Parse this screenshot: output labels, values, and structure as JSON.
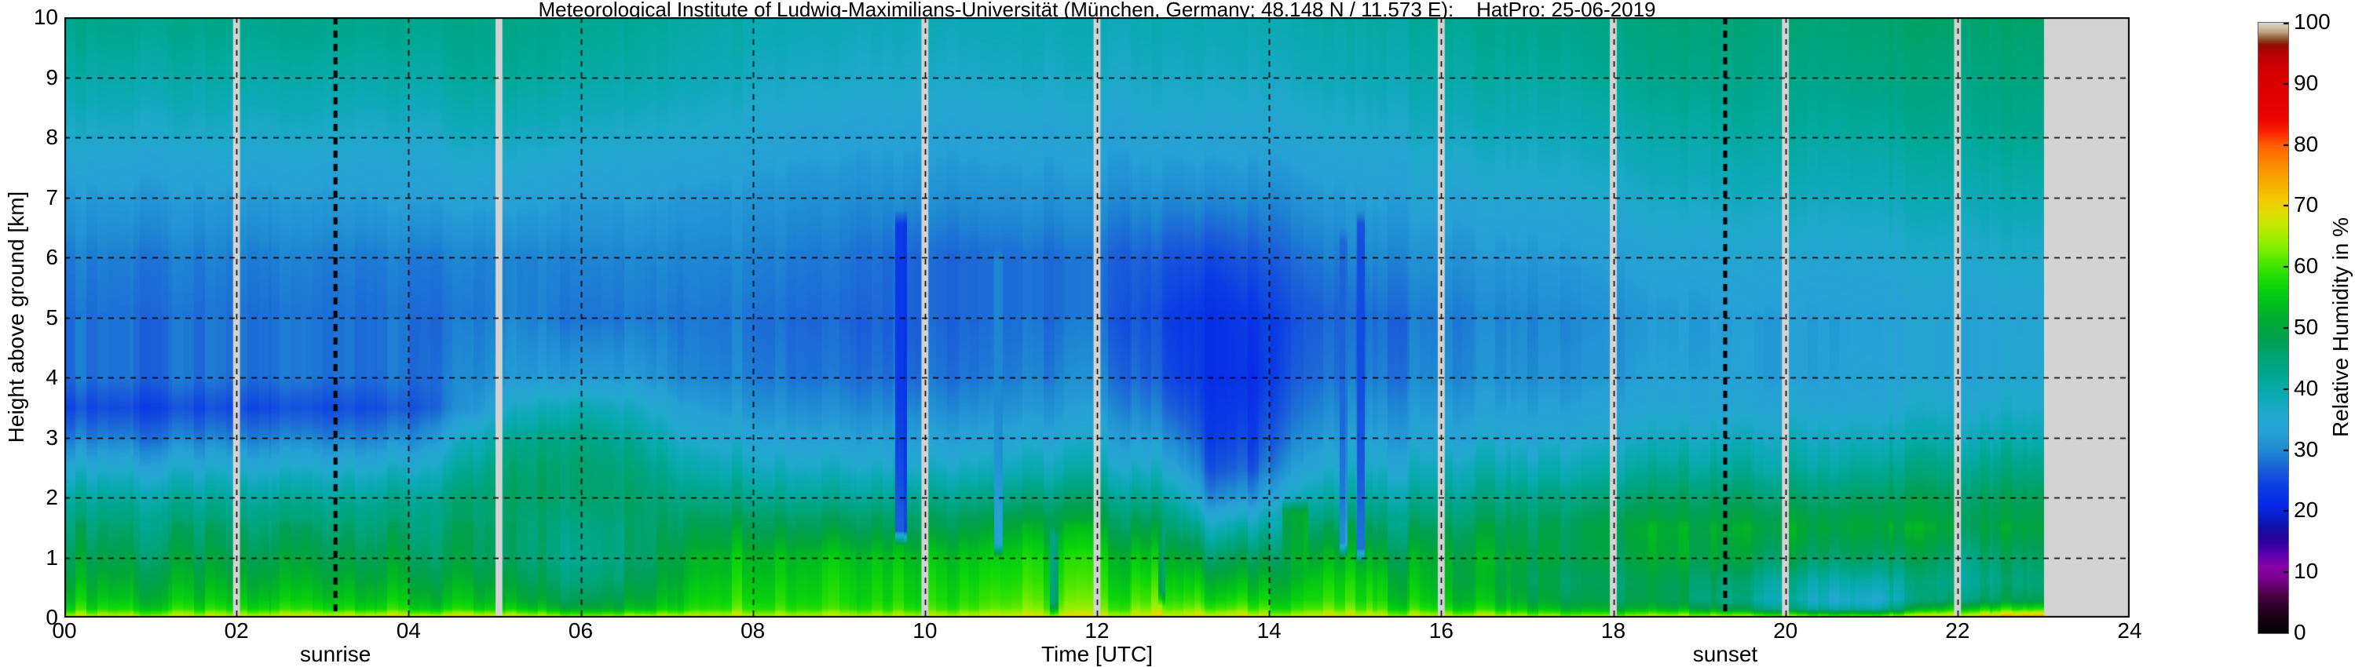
{
  "chart_data": {
    "type": "heatmap",
    "title": "Meteorological Institute of Ludwig-Maximilians-Universität (München, Germany; 48.148 N / 11.573 E):    HatPro: 25-06-2019",
    "xlabel": "Time [UTC]",
    "ylabel": "Height above ground [km]",
    "colorbar_label": "Relative Humidity in %",
    "xlim": [
      0,
      24
    ],
    "ylim": [
      0,
      10
    ],
    "clim": [
      0,
      100
    ],
    "grid": {
      "x_step_hours": 2,
      "y_step_km": 1,
      "style": "dashed",
      "color": "#000000"
    },
    "x_tick_values": [
      0,
      2,
      4,
      6,
      8,
      10,
      12,
      14,
      16,
      18,
      20,
      22,
      24
    ],
    "x_tick_labels": [
      "00",
      "02",
      "04",
      "06",
      "08",
      "10",
      "12",
      "14",
      "16",
      "18",
      "20",
      "22",
      "24"
    ],
    "y_tick_values": [
      0,
      1,
      2,
      3,
      4,
      5,
      6,
      7,
      8,
      9,
      10
    ],
    "y_tick_labels": [
      "0",
      "1",
      "2",
      "3",
      "4",
      "5",
      "6",
      "7",
      "8",
      "9",
      "10"
    ],
    "cbar_tick_values": [
      0,
      10,
      20,
      30,
      40,
      50,
      60,
      70,
      80,
      90,
      100
    ],
    "cbar_tick_labels": [
      "0",
      "10",
      "20",
      "30",
      "40",
      "50",
      "60",
      "70",
      "80",
      "90",
      "100"
    ],
    "annotations": [
      {
        "text": "sunrise",
        "t": 3.15
      },
      {
        "text": "sunset",
        "t": 19.3
      }
    ],
    "sun_lines_utc": [
      3.15,
      19.3
    ],
    "data_gap_times_utc": [
      2.0,
      5.05,
      10.0,
      12.0,
      16.0,
      18.0,
      20.0,
      22.0
    ],
    "gap_width_hours": 0.08,
    "no_data_from_utc": 23.0,
    "no_data_to_utc": 24.0,
    "no_data_color": "#d3d3d3",
    "heights_km": [
      0,
      0.06,
      0.15,
      0.3,
      0.6,
      1,
      1.5,
      2,
      2.5,
      3,
      3.5,
      4,
      5,
      6,
      7,
      8,
      9,
      10
    ],
    "times_utc": [
      0,
      1,
      2,
      3,
      4,
      4.7,
      5.2,
      6,
      6.7,
      7.3,
      8,
      9,
      10,
      11,
      12,
      12.9,
      13.3,
      13.8,
      14.2,
      14.9,
      15.3,
      16,
      17,
      18,
      19,
      20,
      21,
      22,
      23
    ],
    "rh_percent": [
      [
        70,
        63,
        57,
        54,
        51,
        48,
        45,
        41,
        35,
        29,
        25,
        28,
        28,
        29,
        32,
        36,
        40,
        43
      ],
      [
        70,
        63,
        57,
        54,
        51,
        48,
        45,
        41,
        35,
        29,
        25,
        28,
        28,
        29,
        32,
        36,
        40,
        43
      ],
      [
        70,
        63,
        57,
        54,
        51,
        48,
        45,
        41,
        35,
        29,
        25,
        28,
        28,
        29,
        32,
        36,
        40,
        43
      ],
      [
        71,
        64,
        57,
        54,
        51,
        48,
        45,
        41,
        35,
        29,
        25,
        28,
        28,
        29,
        32,
        36,
        40,
        43
      ],
      [
        74,
        64,
        57,
        54,
        51,
        48,
        45,
        42,
        36,
        30,
        26,
        28,
        28,
        29,
        33,
        36,
        40,
        43
      ],
      [
        74,
        63,
        55,
        52,
        49,
        46,
        45,
        44,
        40,
        36,
        30,
        29,
        28,
        29,
        33,
        37,
        41,
        43
      ],
      [
        71,
        62,
        54,
        50,
        47,
        44,
        44,
        45,
        44,
        41,
        36,
        31,
        29,
        29,
        33,
        37,
        41,
        43
      ],
      [
        70,
        61,
        53,
        49,
        46,
        44,
        45,
        47,
        47,
        45,
        40,
        33,
        29,
        30,
        33,
        37,
        41,
        43
      ],
      [
        70,
        62,
        54,
        51,
        48,
        46,
        46,
        46,
        44,
        41,
        37,
        32,
        29,
        30,
        33,
        36,
        40,
        42
      ],
      [
        70,
        65,
        59,
        57,
        55,
        53,
        49,
        44,
        40,
        36,
        33,
        30,
        29,
        30,
        32,
        36,
        39,
        41
      ],
      [
        70,
        66,
        61,
        59,
        57,
        55,
        50,
        44,
        39,
        35,
        32,
        30,
        29,
        30,
        32,
        35,
        38,
        40
      ],
      [
        70,
        66,
        61,
        59,
        58,
        56,
        50,
        43,
        38,
        34,
        31,
        29,
        28,
        29,
        31,
        34,
        37,
        39
      ],
      [
        70,
        66,
        61,
        59,
        58,
        56,
        50,
        44,
        38,
        34,
        31,
        29,
        28,
        28,
        31,
        34,
        37,
        39
      ],
      [
        70,
        66,
        62,
        60,
        58,
        56,
        51,
        44,
        38,
        34,
        31,
        29,
        28,
        28,
        31,
        34,
        37,
        39
      ],
      [
        70,
        66,
        62,
        60,
        58,
        56,
        51,
        45,
        39,
        35,
        32,
        30,
        28,
        28,
        31,
        34,
        37,
        39
      ],
      [
        71,
        66,
        62,
        59,
        56,
        52,
        46,
        40,
        34,
        30,
        27,
        25,
        24,
        26,
        30,
        34,
        37,
        39
      ],
      [
        72,
        65,
        60,
        56,
        52,
        46,
        38,
        30,
        26,
        24,
        23,
        22,
        22,
        25,
        30,
        34,
        37,
        39
      ],
      [
        72,
        65,
        60,
        56,
        52,
        47,
        39,
        31,
        26,
        24,
        23,
        22,
        23,
        26,
        30,
        34,
        37,
        39
      ],
      [
        71,
        65,
        60,
        57,
        54,
        50,
        44,
        38,
        33,
        30,
        28,
        27,
        26,
        28,
        31,
        35,
        38,
        40
      ],
      [
        70,
        65,
        60,
        57,
        55,
        51,
        46,
        40,
        35,
        32,
        30,
        28,
        27,
        29,
        32,
        35,
        38,
        40
      ],
      [
        70,
        65,
        60,
        57,
        55,
        51,
        46,
        41,
        36,
        33,
        31,
        29,
        28,
        30,
        33,
        36,
        39,
        41
      ],
      [
        70,
        63,
        57,
        54,
        52,
        51,
        47,
        42,
        38,
        34,
        32,
        30,
        29,
        31,
        34,
        37,
        40,
        42
      ],
      [
        70,
        62,
        55,
        51,
        49,
        50,
        48,
        44,
        39,
        35,
        33,
        31,
        30,
        32,
        35,
        38,
        41,
        43
      ],
      [
        70,
        60,
        52,
        48,
        47,
        49,
        50,
        45,
        40,
        36,
        34,
        32,
        31,
        33,
        36,
        39,
        42,
        44
      ],
      [
        70,
        60,
        50,
        45,
        46,
        49,
        50,
        46,
        41,
        37,
        34,
        33,
        32,
        34,
        37,
        40,
        43,
        45
      ],
      [
        70,
        58,
        44,
        40,
        42,
        48,
        51,
        46,
        41,
        38,
        35,
        33,
        33,
        35,
        38,
        41,
        43,
        45
      ],
      [
        70,
        56,
        40,
        36,
        40,
        47,
        51,
        47,
        42,
        38,
        35,
        34,
        33,
        35,
        38,
        41,
        44,
        46
      ],
      [
        75,
        66,
        56,
        46,
        43,
        45,
        49,
        47,
        43,
        39,
        36,
        34,
        34,
        36,
        39,
        42,
        44,
        46
      ],
      [
        78,
        70,
        58,
        47,
        44,
        46,
        49,
        47,
        43,
        39,
        36,
        35,
        34,
        36,
        39,
        42,
        44,
        46
      ]
    ],
    "dry_moist_streaks": [
      {
        "t": 9.72,
        "w": 0.14,
        "h0": 1.2,
        "h1": 6.8,
        "rh": 23
      },
      {
        "t": 10.85,
        "w": 0.1,
        "h0": 1.0,
        "h1": 6.2,
        "rh": 30
      },
      {
        "t": 11.5,
        "w": 0.1,
        "h0": 0.0,
        "h1": 1.6,
        "rh": 44
      },
      {
        "t": 12.75,
        "w": 0.08,
        "h0": 0.2,
        "h1": 1.8,
        "rh": 44
      },
      {
        "t": 14.3,
        "w": 0.3,
        "h0": 0.6,
        "h1": 2.0,
        "rh": 53
      },
      {
        "t": 14.86,
        "w": 0.09,
        "h0": 1.0,
        "h1": 6.5,
        "rh": 27
      },
      {
        "t": 15.06,
        "w": 0.09,
        "h0": 0.9,
        "h1": 6.8,
        "rh": 25
      }
    ],
    "colormap_stops": [
      [
        0,
        "#000000"
      ],
      [
        3,
        "#1c0018"
      ],
      [
        6,
        "#47003f"
      ],
      [
        9,
        "#7a0090"
      ],
      [
        11,
        "#8800a8"
      ],
      [
        13,
        "#5c00b0"
      ],
      [
        15,
        "#2f009c"
      ],
      [
        17,
        "#150e9c"
      ],
      [
        19,
        "#0a1cc4"
      ],
      [
        21,
        "#0628e6"
      ],
      [
        24,
        "#0a3ce4"
      ],
      [
        27,
        "#1b5fd8"
      ],
      [
        30,
        "#1e8ad2"
      ],
      [
        33,
        "#27a0d6"
      ],
      [
        36,
        "#20a8cc"
      ],
      [
        39,
        "#0baab4"
      ],
      [
        42,
        "#00a894"
      ],
      [
        45,
        "#00a476"
      ],
      [
        48,
        "#009f52"
      ],
      [
        51,
        "#00a834"
      ],
      [
        54,
        "#00bf1c"
      ],
      [
        57,
        "#0cd60a"
      ],
      [
        60,
        "#3ce400"
      ],
      [
        63,
        "#7fee00"
      ],
      [
        66,
        "#b5ec00"
      ],
      [
        69,
        "#e0dc00"
      ],
      [
        71,
        "#f2cb00"
      ],
      [
        74,
        "#f8ab00"
      ],
      [
        77,
        "#fb8800"
      ],
      [
        80,
        "#ff5f00"
      ],
      [
        82,
        "#fa2600"
      ],
      [
        84,
        "#ee0500"
      ],
      [
        88,
        "#e00000"
      ],
      [
        92,
        "#d40000"
      ],
      [
        95,
        "#b80000"
      ],
      [
        96.5,
        "#8f0f06"
      ],
      [
        97.5,
        "#8f5a33"
      ],
      [
        98.5,
        "#c2a07c"
      ],
      [
        99.4,
        "#cfc3ae"
      ],
      [
        100,
        "#d7d3cb"
      ]
    ]
  }
}
